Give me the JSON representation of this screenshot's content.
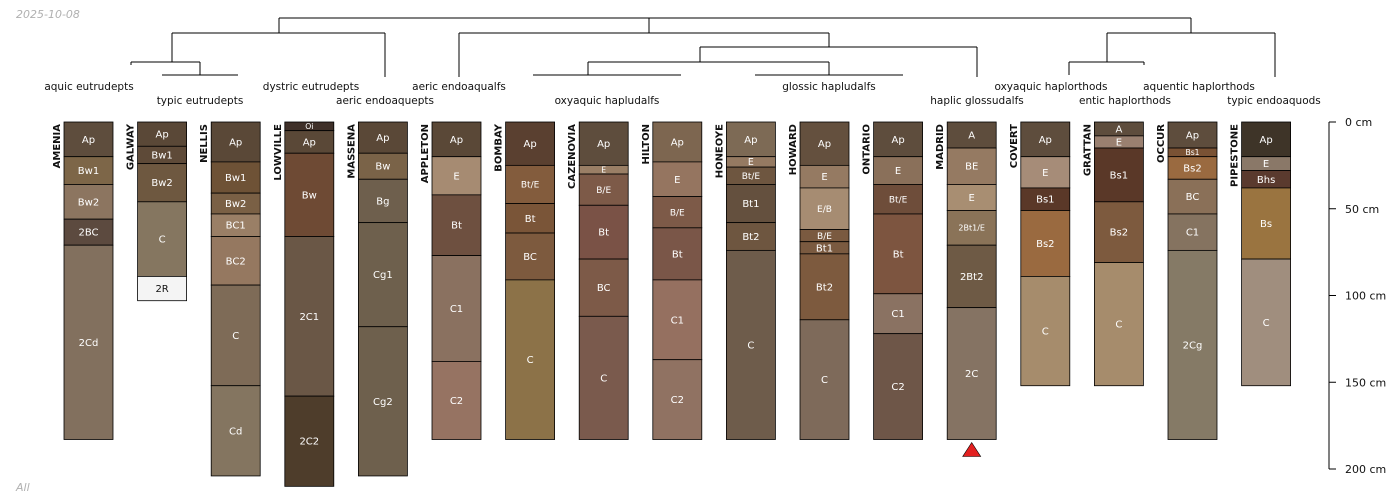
{
  "date_label": "2025-10-08",
  "footer_label": "All",
  "depth_axis": {
    "ticks": [
      {
        "depth": 0,
        "label": "0 cm"
      },
      {
        "depth": 50,
        "label": "50 cm"
      },
      {
        "depth": 100,
        "label": "100 cm"
      },
      {
        "depth": 150,
        "label": "150 cm"
      },
      {
        "depth": 200,
        "label": "200 cm"
      }
    ]
  },
  "taxa_labels": [
    {
      "text": "aquic eutrudepts"
    },
    {
      "text": "typic eutrudepts"
    },
    {
      "text": "dystric eutrudepts"
    },
    {
      "text": "aeric endoaquepts"
    },
    {
      "text": "aeric endoaqualfs"
    },
    {
      "text": "oxyaquic hapludalfs"
    },
    {
      "text": "glossic hapludalfs"
    },
    {
      "text": "haplic glossudalfs"
    },
    {
      "text": "oxyaquic haplorthods"
    },
    {
      "text": "entic haplorthods"
    },
    {
      "text": "aquentic haplorthods"
    },
    {
      "text": "typic endoaquods"
    }
  ],
  "profiles": [
    {
      "name": "AMENIA",
      "horizons": [
        {
          "name": "Ap",
          "top": 0,
          "bottom": 20,
          "color": "#5e4d3d"
        },
        {
          "name": "Bw1",
          "top": 20,
          "bottom": 36,
          "color": "#7d6648"
        },
        {
          "name": "Bw2",
          "top": 36,
          "bottom": 56,
          "color": "#8c7560"
        },
        {
          "name": "2BC",
          "top": 56,
          "bottom": 71,
          "color": "#5c4a3f"
        },
        {
          "name": "2Cd",
          "top": 71,
          "bottom": 183,
          "color": "#82705e"
        }
      ]
    },
    {
      "name": "GALWAY",
      "horizons": [
        {
          "name": "Ap",
          "top": 0,
          "bottom": 14,
          "color": "#5a4837"
        },
        {
          "name": "Bw1",
          "top": 14,
          "bottom": 24,
          "color": "#5e4a38"
        },
        {
          "name": "Bw2",
          "top": 24,
          "bottom": 46,
          "color": "#6e5840"
        },
        {
          "name": "C",
          "top": 46,
          "bottom": 89,
          "color": "#857660"
        },
        {
          "name": "2R",
          "top": 89,
          "bottom": 103,
          "color": "#f4f4f4"
        }
      ]
    },
    {
      "name": "NELLIS",
      "horizons": [
        {
          "name": "Ap",
          "top": 0,
          "bottom": 23,
          "color": "#5a4837"
        },
        {
          "name": "Bw1",
          "top": 23,
          "bottom": 41,
          "color": "#6e5236"
        },
        {
          "name": "Bw2",
          "top": 41,
          "bottom": 53,
          "color": "#7a6045"
        },
        {
          "name": "BC1",
          "top": 53,
          "bottom": 66,
          "color": "#9a7f66"
        },
        {
          "name": "BC2",
          "top": 66,
          "bottom": 94,
          "color": "#957860"
        },
        {
          "name": "C",
          "top": 94,
          "bottom": 152,
          "color": "#7e6b57"
        },
        {
          "name": "Cd",
          "top": 152,
          "bottom": 204,
          "color": "#847560"
        }
      ]
    },
    {
      "name": "LOWVILLE",
      "horizons": [
        {
          "name": "Oi",
          "top": 0,
          "bottom": 5,
          "color": "#3f3029"
        },
        {
          "name": "Ap",
          "top": 5,
          "bottom": 18,
          "color": "#5a4837"
        },
        {
          "name": "Bw",
          "top": 18,
          "bottom": 66,
          "color": "#6e4a34"
        },
        {
          "name": "2C1",
          "top": 66,
          "bottom": 158,
          "color": "#6a5746"
        },
        {
          "name": "2C2",
          "top": 158,
          "bottom": 210,
          "color": "#4e3d2b"
        }
      ]
    },
    {
      "name": "MASSENA",
      "horizons": [
        {
          "name": "Ap",
          "top": 0,
          "bottom": 18,
          "color": "#5a4837"
        },
        {
          "name": "Bw",
          "top": 18,
          "bottom": 33,
          "color": "#7a6348"
        },
        {
          "name": "Bg",
          "top": 33,
          "bottom": 58,
          "color": "#6e5f4d"
        },
        {
          "name": "Cg1",
          "top": 58,
          "bottom": 118,
          "color": "#6e604d"
        },
        {
          "name": "Cg2",
          "top": 118,
          "bottom": 204,
          "color": "#6e604d"
        }
      ]
    },
    {
      "name": "APPLETON",
      "horizons": [
        {
          "name": "Ap",
          "top": 0,
          "bottom": 20,
          "color": "#5a4837"
        },
        {
          "name": "E",
          "top": 20,
          "bottom": 42,
          "color": "#a68b72"
        },
        {
          "name": "Bt",
          "top": 42,
          "bottom": 77,
          "color": "#6e5040"
        },
        {
          "name": "C1",
          "top": 77,
          "bottom": 138,
          "color": "#8a7160"
        },
        {
          "name": "C2",
          "top": 138,
          "bottom": 183,
          "color": "#967362"
        }
      ]
    },
    {
      "name": "BOMBAY",
      "horizons": [
        {
          "name": "Ap",
          "top": 0,
          "bottom": 25,
          "color": "#5a4030"
        },
        {
          "name": "Bt/E",
          "top": 25,
          "bottom": 47,
          "color": "#835c3d"
        },
        {
          "name": "Bt",
          "top": 47,
          "bottom": 64,
          "color": "#7a5538"
        },
        {
          "name": "BC",
          "top": 64,
          "bottom": 91,
          "color": "#7d5a3e"
        },
        {
          "name": "C",
          "top": 91,
          "bottom": 183,
          "color": "#8c7248"
        }
      ]
    },
    {
      "name": "CAZENOVIA",
      "horizons": [
        {
          "name": "Ap",
          "top": 0,
          "bottom": 25,
          "color": "#5e4d3d"
        },
        {
          "name": "E",
          "top": 25,
          "bottom": 30,
          "color": "#9a7f66"
        },
        {
          "name": "B/E",
          "top": 30,
          "bottom": 48,
          "color": "#7d5a48"
        },
        {
          "name": "Bt",
          "top": 48,
          "bottom": 79,
          "color": "#7a5246"
        },
        {
          "name": "BC",
          "top": 79,
          "bottom": 112,
          "color": "#7d5a48"
        },
        {
          "name": "C",
          "top": 112,
          "bottom": 183,
          "color": "#7a5a4d"
        }
      ]
    },
    {
      "name": "HILTON",
      "horizons": [
        {
          "name": "Ap",
          "top": 0,
          "bottom": 23,
          "color": "#7d6650"
        },
        {
          "name": "E",
          "top": 23,
          "bottom": 43,
          "color": "#957560"
        },
        {
          "name": "B/E",
          "top": 43,
          "bottom": 61,
          "color": "#7d5a48"
        },
        {
          "name": "Bt",
          "top": 61,
          "bottom": 91,
          "color": "#7a5648"
        },
        {
          "name": "C1",
          "top": 91,
          "bottom": 137,
          "color": "#957060"
        },
        {
          "name": "C2",
          "top": 137,
          "bottom": 183,
          "color": "#907262"
        }
      ]
    },
    {
      "name": "HONEOYE",
      "horizons": [
        {
          "name": "Ap",
          "top": 0,
          "bottom": 20,
          "color": "#7d6a55"
        },
        {
          "name": "E",
          "top": 20,
          "bottom": 26,
          "color": "#957a62"
        },
        {
          "name": "Bt/E",
          "top": 26,
          "bottom": 36,
          "color": "#6e5640"
        },
        {
          "name": "Bt1",
          "top": 36,
          "bottom": 58,
          "color": "#64503e"
        },
        {
          "name": "Bt2",
          "top": 58,
          "bottom": 74,
          "color": "#6e5640"
        },
        {
          "name": "C",
          "top": 74,
          "bottom": 183,
          "color": "#6e5c4b"
        }
      ]
    },
    {
      "name": "HOWARD",
      "horizons": [
        {
          "name": "Ap",
          "top": 0,
          "bottom": 25,
          "color": "#64503e"
        },
        {
          "name": "E",
          "top": 25,
          "bottom": 38,
          "color": "#957a62"
        },
        {
          "name": "E/B",
          "top": 38,
          "bottom": 62,
          "color": "#a68c72"
        },
        {
          "name": "B/E",
          "top": 62,
          "bottom": 69,
          "color": "#7a5a40"
        },
        {
          "name": "Bt1",
          "top": 69,
          "bottom": 76,
          "color": "#7a5a40"
        },
        {
          "name": "Bt2",
          "top": 76,
          "bottom": 114,
          "color": "#7d5a3e"
        },
        {
          "name": "C",
          "top": 114,
          "bottom": 183,
          "color": "#7e6a5a"
        }
      ]
    },
    {
      "name": "ONTARIO",
      "horizons": [
        {
          "name": "Ap",
          "top": 0,
          "bottom": 20,
          "color": "#5e4d3d"
        },
        {
          "name": "E",
          "top": 20,
          "bottom": 36,
          "color": "#8a705a"
        },
        {
          "name": "Bt/E",
          "top": 36,
          "bottom": 53,
          "color": "#6e4d3a"
        },
        {
          "name": "Bt",
          "top": 53,
          "bottom": 99,
          "color": "#7d5540"
        },
        {
          "name": "C1",
          "top": 99,
          "bottom": 122,
          "color": "#8a7262"
        },
        {
          "name": "C2",
          "top": 122,
          "bottom": 183,
          "color": "#6e5648"
        }
      ]
    },
    {
      "name": "MADRID",
      "horizons": [
        {
          "name": "A",
          "top": 0,
          "bottom": 15,
          "color": "#5e4d3d"
        },
        {
          "name": "BE",
          "top": 15,
          "bottom": 36,
          "color": "#957a62"
        },
        {
          "name": "E",
          "top": 36,
          "bottom": 51,
          "color": "#a88e72"
        },
        {
          "name": "2Bt1/E",
          "top": 51,
          "bottom": 71,
          "color": "#8a7358"
        },
        {
          "name": "2Bt2",
          "top": 71,
          "bottom": 107,
          "color": "#6e5a45"
        },
        {
          "name": "2C",
          "top": 107,
          "bottom": 183,
          "color": "#857363"
        }
      ]
    },
    {
      "name": "COVERT",
      "horizons": [
        {
          "name": "Ap",
          "top": 0,
          "bottom": 20,
          "color": "#5e4d3d"
        },
        {
          "name": "E",
          "top": 20,
          "bottom": 38,
          "color": "#a68c78"
        },
        {
          "name": "Bs1",
          "top": 38,
          "bottom": 51,
          "color": "#5a3828"
        },
        {
          "name": "Bs2",
          "top": 51,
          "bottom": 89,
          "color": "#9a6a40"
        },
        {
          "name": "C",
          "top": 89,
          "bottom": 152,
          "color": "#a68c6c"
        }
      ]
    },
    {
      "name": "GRATTAN",
      "horizons": [
        {
          "name": "A",
          "top": 0,
          "bottom": 8,
          "color": "#5e4d3d"
        },
        {
          "name": "E",
          "top": 8,
          "bottom": 15,
          "color": "#9a8070"
        },
        {
          "name": "Bs1",
          "top": 15,
          "bottom": 46,
          "color": "#5a3828"
        },
        {
          "name": "Bs2",
          "top": 46,
          "bottom": 81,
          "color": "#7d5a3e"
        },
        {
          "name": "C",
          "top": 81,
          "bottom": 152,
          "color": "#a68c6c"
        }
      ]
    },
    {
      "name": "OCCUR",
      "horizons": [
        {
          "name": "Ap",
          "top": 0,
          "bottom": 15,
          "color": "#5e4d3d"
        },
        {
          "name": "Bs1",
          "top": 15,
          "bottom": 20,
          "color": "#7a5234"
        },
        {
          "name": "Bs2",
          "top": 20,
          "bottom": 33,
          "color": "#9a6a40"
        },
        {
          "name": "BC",
          "top": 33,
          "bottom": 53,
          "color": "#8a7058"
        },
        {
          "name": "C1",
          "top": 53,
          "bottom": 74,
          "color": "#857360"
        },
        {
          "name": "2Cg",
          "top": 74,
          "bottom": 183,
          "color": "#857a66"
        }
      ]
    },
    {
      "name": "PIPESTONE",
      "horizons": [
        {
          "name": "Ap",
          "top": 0,
          "bottom": 20,
          "color": "#3e3428"
        },
        {
          "name": "E",
          "top": 20,
          "bottom": 28,
          "color": "#8a7868"
        },
        {
          "name": "Bhs",
          "top": 28,
          "bottom": 38,
          "color": "#5a3a2e"
        },
        {
          "name": "Bs",
          "top": 38,
          "bottom": 79,
          "color": "#9a7440"
        },
        {
          "name": "C",
          "top": 79,
          "bottom": 152,
          "color": "#a08e7e"
        }
      ]
    }
  ],
  "markers": [
    {
      "profile": "MADRID",
      "type": "triangle",
      "color": "#e32020"
    }
  ]
}
